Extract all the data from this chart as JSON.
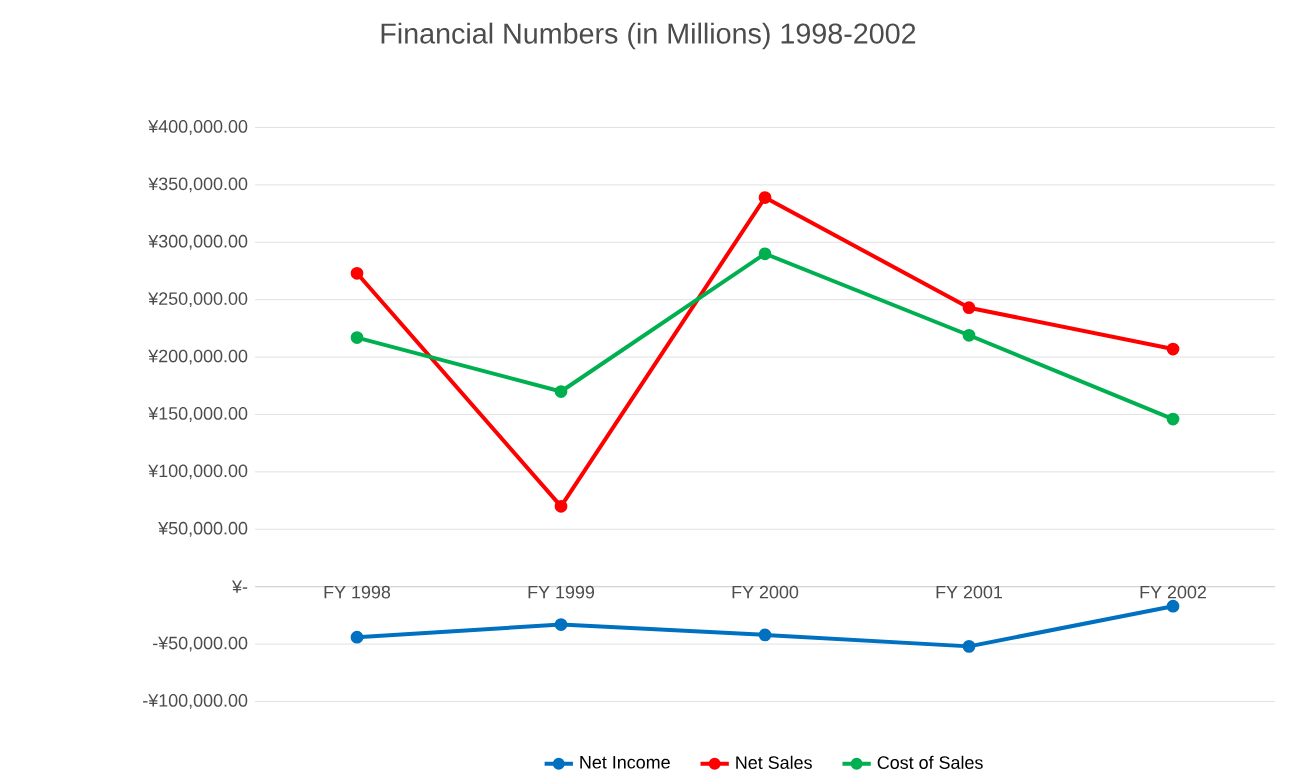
{
  "chart_data": {
    "type": "line",
    "title": "Financial Numbers (in Millions) 1998-2002",
    "categories": [
      "FY 1998",
      "FY 1999",
      "FY 2000",
      "FY 2001",
      "FY 2002"
    ],
    "series": [
      {
        "name": "Net Income",
        "color": "#0070c0",
        "values": [
          -44000,
          -33000,
          -42000,
          -52000,
          -17000
        ]
      },
      {
        "name": "Net Sales",
        "color": "#ff0000",
        "values": [
          273000,
          70000,
          339000,
          243000,
          207000
        ]
      },
      {
        "name": "Cost of Sales",
        "color": "#00b050",
        "values": [
          217000,
          170000,
          290000,
          219000,
          146000
        ]
      }
    ],
    "ylim": [
      -100000,
      400000
    ],
    "yticks": [
      {
        "value": -100000,
        "label": "-¥100,000.00"
      },
      {
        "value": -50000,
        "label": "-¥50,000.00"
      },
      {
        "value": 0,
        "label": "¥-"
      },
      {
        "value": 50000,
        "label": "¥50,000.00"
      },
      {
        "value": 100000,
        "label": "¥100,000.00"
      },
      {
        "value": 150000,
        "label": "¥150,000.00"
      },
      {
        "value": 200000,
        "label": "¥200,000.00"
      },
      {
        "value": 250000,
        "label": "¥250,000.00"
      },
      {
        "value": 300000,
        "label": "¥300,000.00"
      },
      {
        "value": 350000,
        "label": "¥350,000.00"
      },
      {
        "value": 400000,
        "label": "¥400,000.00"
      }
    ],
    "grid": "y",
    "legend": "bottom",
    "marker": "circle",
    "line_style": "solid"
  }
}
